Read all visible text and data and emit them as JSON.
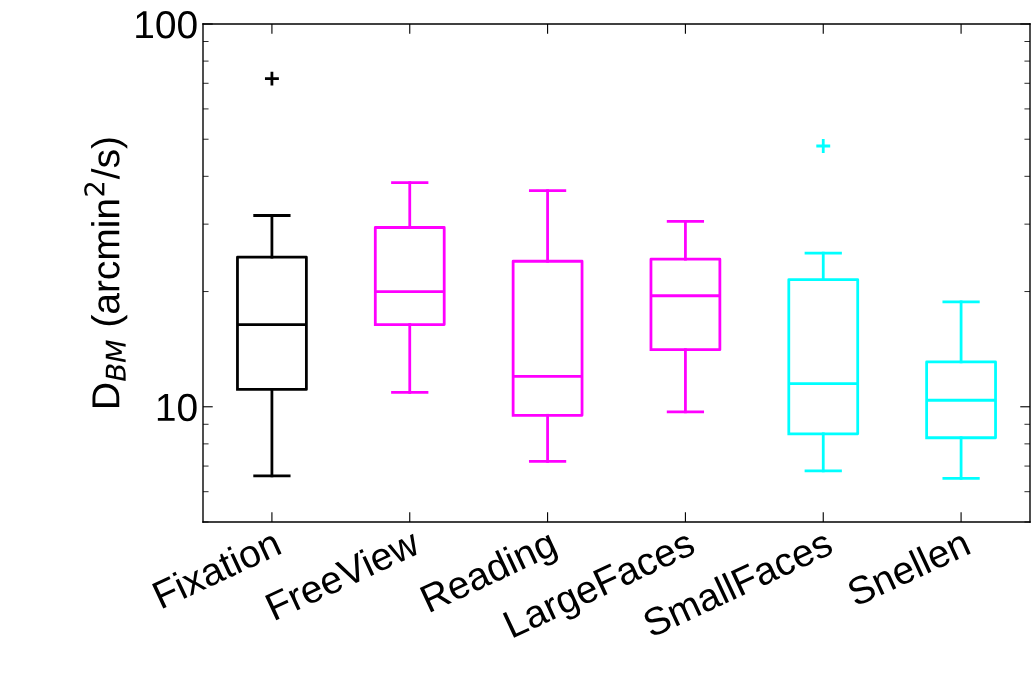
{
  "chart_data": {
    "type": "box",
    "ylabel": "D$_{BM}$ (arcmin$^{2}$/s)",
    "log": true,
    "ylim": [
      5,
      100
    ],
    "yticks": [
      10,
      100
    ],
    "grid": false,
    "legend": false,
    "categories": [
      "Fixation",
      "FreeView",
      "Reading",
      "LargeFaces",
      "SmallFaces",
      "Snellen"
    ],
    "colors": [
      "#000000",
      "#ff00ff",
      "#ff00ff",
      "#ff00ff",
      "#00ffff",
      "#00ffff"
    ],
    "boxes": [
      {
        "low": 6.6,
        "q1": 11.1,
        "median": 16.4,
        "q3": 24.6,
        "high": 31.6,
        "outliers": [
          72
        ]
      },
      {
        "low": 10.9,
        "q1": 16.4,
        "median": 20.0,
        "q3": 29.4,
        "high": 38.5
      },
      {
        "low": 7.2,
        "q1": 9.5,
        "median": 12.0,
        "q3": 24.0,
        "high": 36.7
      },
      {
        "low": 9.7,
        "q1": 14.1,
        "median": 19.5,
        "q3": 24.3,
        "high": 30.5
      },
      {
        "low": 6.8,
        "q1": 8.5,
        "median": 11.5,
        "q3": 21.5,
        "high": 25.2,
        "outliers": [
          48
        ]
      },
      {
        "low": 6.5,
        "q1": 8.3,
        "median": 10.4,
        "q3": 13.1,
        "high": 18.8
      }
    ]
  }
}
